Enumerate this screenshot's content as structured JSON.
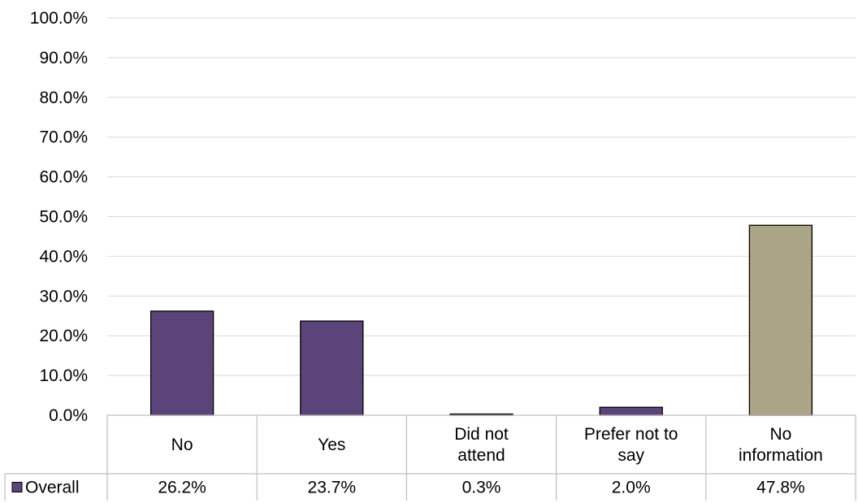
{
  "chart_data": {
    "type": "bar",
    "categories": [
      [
        "No"
      ],
      [
        "Yes"
      ],
      [
        "Did not",
        "attend"
      ],
      [
        "Prefer not to",
        "say"
      ],
      [
        "No",
        "information"
      ]
    ],
    "series": [
      {
        "name": "Overall",
        "values": [
          26.2,
          23.7,
          0.3,
          2.0,
          47.8
        ],
        "value_labels": [
          "26.2%",
          "23.7%",
          "0.3%",
          "2.0%",
          "47.8%"
        ],
        "colors": [
          "#5b447a",
          "#5b447a",
          "#5b447a",
          "#5b447a",
          "#aca486"
        ]
      }
    ],
    "ylim": [
      0,
      100
    ],
    "y_ticks": [
      "0.0%",
      "10.0%",
      "20.0%",
      "30.0%",
      "40.0%",
      "50.0%",
      "60.0%",
      "70.0%",
      "80.0%",
      "90.0%",
      "100.0%"
    ],
    "grid": true,
    "legend": "data-table"
  }
}
